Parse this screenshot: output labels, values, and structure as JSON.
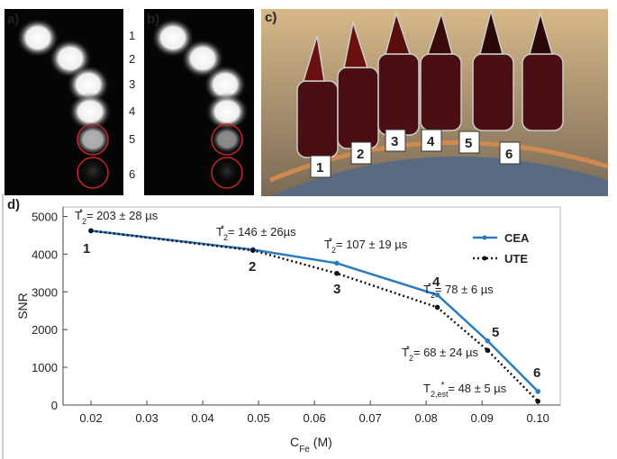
{
  "panels": {
    "a": "a)",
    "b": "b)",
    "c": "c)"
  },
  "scale_labels": [
    "1",
    "2",
    "3",
    "4",
    "5",
    "6"
  ],
  "vial_labels": [
    "1",
    "2",
    "3",
    "4",
    "5",
    "6"
  ],
  "chart_data": {
    "type": "line",
    "panel_label": "d)",
    "x_label": {
      "main": "C",
      "sub": "Fe",
      "unit": "(M)"
    },
    "y_label": "SNR",
    "x": [
      0.02,
      0.049,
      0.064,
      0.082,
      0.091,
      0.1
    ],
    "series": [
      {
        "name": "CEA",
        "color": "#2a7bbf",
        "style": "solid",
        "values": [
          4620,
          4120,
          3760,
          2920,
          1700,
          360
        ]
      },
      {
        "name": "UTE",
        "color": "#111111",
        "style": "dotted",
        "values": [
          4620,
          4100,
          3490,
          2590,
          1450,
          100
        ]
      }
    ],
    "point_labels": [
      "1",
      "2",
      "3",
      "4",
      "5",
      "6"
    ],
    "annotations": [
      {
        "symbol": "T",
        "sub": "2",
        "sup": "*",
        "text": "= 203 ± 28 µs"
      },
      {
        "symbol": "T",
        "sub": "2",
        "sup": "*",
        "text": "= 146 ± 26µs"
      },
      {
        "symbol": "T",
        "sub": "2",
        "sup": "*",
        "text": "= 107 ± 19 µs"
      },
      {
        "symbol": "T",
        "sub": "2",
        "sup": "*",
        "text": "= 78 ± 6 µs"
      },
      {
        "symbol": "T",
        "sub": "2",
        "sup": "*",
        "text": "= 68 ± 24 µs"
      },
      {
        "symbol": "T",
        "sub": "2,est",
        "sup": "*",
        "text": "= 48 ± 5 µs"
      }
    ],
    "xlim": [
      0.015,
      0.104
    ],
    "ylim": [
      0,
      5250
    ],
    "xticks": [
      0.02,
      0.03,
      0.04,
      0.05,
      0.06,
      0.07,
      0.08,
      0.09,
      {
        "value": 0.1,
        "label": "0.10"
      }
    ],
    "yticks": [
      0,
      1000,
      2000,
      3000,
      4000,
      5000
    ],
    "legend": "upper right"
  }
}
